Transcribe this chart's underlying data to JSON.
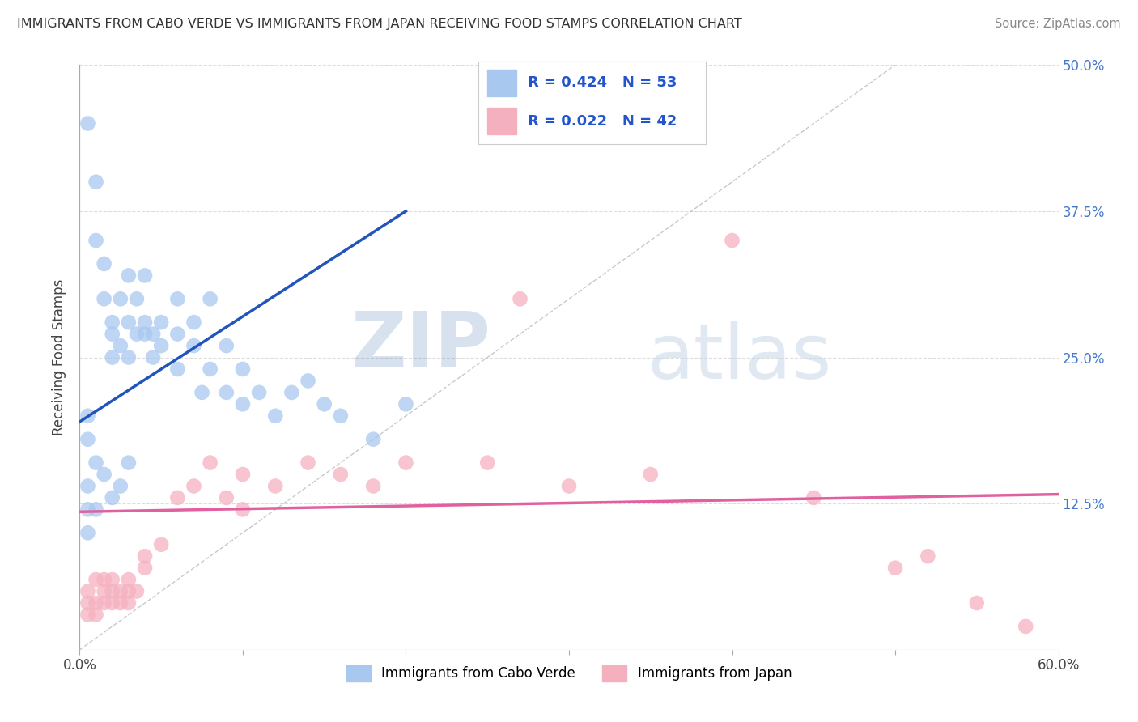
{
  "title": "IMMIGRANTS FROM CABO VERDE VS IMMIGRANTS FROM JAPAN RECEIVING FOOD STAMPS CORRELATION CHART",
  "source": "Source: ZipAtlas.com",
  "ylabel": "Receiving Food Stamps",
  "xlabel_blue": "Immigrants from Cabo Verde",
  "xlabel_pink": "Immigrants from Japan",
  "R_blue": 0.424,
  "N_blue": 53,
  "R_pink": 0.022,
  "N_pink": 42,
  "xlim": [
    0.0,
    0.6
  ],
  "ylim": [
    0.0,
    0.5
  ],
  "yticks": [
    0.0,
    0.125,
    0.25,
    0.375,
    0.5
  ],
  "ytick_labels": [
    "",
    "12.5%",
    "25.0%",
    "37.5%",
    "50.0%"
  ],
  "xticks": [
    0.0,
    0.1,
    0.2,
    0.3,
    0.4,
    0.5,
    0.6
  ],
  "xtick_labels": [
    "0.0%",
    "",
    "",
    "",
    "",
    "",
    "60.0%"
  ],
  "color_blue": "#a8c8f0",
  "color_pink": "#f5b0c0",
  "line_blue": "#2255bb",
  "line_pink": "#e060a0",
  "watermark_color": "#dce8f5",
  "blue_points_x": [
    0.005,
    0.01,
    0.01,
    0.015,
    0.015,
    0.02,
    0.02,
    0.02,
    0.025,
    0.025,
    0.03,
    0.03,
    0.03,
    0.035,
    0.035,
    0.04,
    0.04,
    0.04,
    0.045,
    0.045,
    0.05,
    0.05,
    0.06,
    0.06,
    0.06,
    0.07,
    0.07,
    0.075,
    0.08,
    0.08,
    0.09,
    0.09,
    0.1,
    0.1,
    0.11,
    0.12,
    0.13,
    0.14,
    0.15,
    0.16,
    0.18,
    0.2,
    0.005,
    0.005,
    0.01,
    0.015,
    0.02,
    0.025,
    0.03,
    0.005,
    0.005,
    0.005,
    0.01
  ],
  "blue_points_y": [
    0.45,
    0.4,
    0.35,
    0.33,
    0.3,
    0.27,
    0.28,
    0.25,
    0.26,
    0.3,
    0.28,
    0.25,
    0.32,
    0.27,
    0.3,
    0.27,
    0.28,
    0.32,
    0.25,
    0.27,
    0.26,
    0.28,
    0.3,
    0.27,
    0.24,
    0.26,
    0.28,
    0.22,
    0.24,
    0.3,
    0.26,
    0.22,
    0.21,
    0.24,
    0.22,
    0.2,
    0.22,
    0.23,
    0.21,
    0.2,
    0.18,
    0.21,
    0.18,
    0.2,
    0.16,
    0.15,
    0.13,
    0.14,
    0.16,
    0.12,
    0.14,
    0.1,
    0.12
  ],
  "pink_points_x": [
    0.005,
    0.005,
    0.005,
    0.01,
    0.01,
    0.01,
    0.015,
    0.015,
    0.015,
    0.02,
    0.02,
    0.02,
    0.025,
    0.025,
    0.03,
    0.03,
    0.03,
    0.035,
    0.04,
    0.04,
    0.05,
    0.06,
    0.07,
    0.08,
    0.09,
    0.1,
    0.12,
    0.14,
    0.16,
    0.18,
    0.2,
    0.25,
    0.3,
    0.35,
    0.4,
    0.45,
    0.5,
    0.52,
    0.55,
    0.58,
    0.1,
    0.27
  ],
  "pink_points_y": [
    0.05,
    0.04,
    0.03,
    0.06,
    0.04,
    0.03,
    0.05,
    0.04,
    0.06,
    0.05,
    0.04,
    0.06,
    0.04,
    0.05,
    0.04,
    0.05,
    0.06,
    0.05,
    0.07,
    0.08,
    0.09,
    0.13,
    0.14,
    0.16,
    0.13,
    0.15,
    0.14,
    0.16,
    0.15,
    0.14,
    0.16,
    0.16,
    0.14,
    0.15,
    0.35,
    0.13,
    0.07,
    0.08,
    0.04,
    0.02,
    0.12,
    0.3
  ]
}
